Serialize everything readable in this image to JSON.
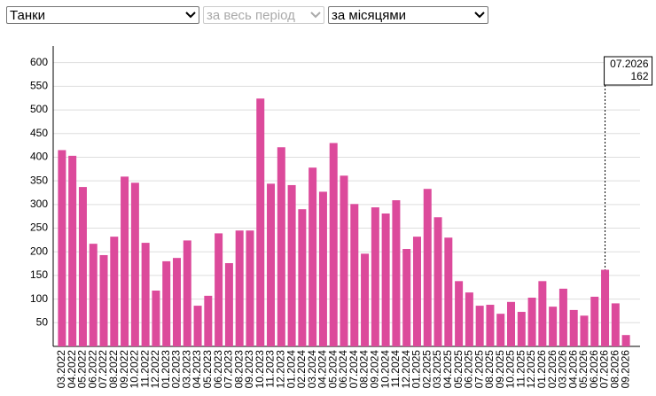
{
  "controls": {
    "weapon": "Танки",
    "period": "за весь період",
    "grouping": "за місяцями"
  },
  "chart_data": {
    "type": "bar",
    "categories": [
      "03.2022",
      "04.2022",
      "05.2022",
      "06.2022",
      "07.2022",
      "08.2022",
      "09.2022",
      "10.2022",
      "11.2022",
      "12.2022",
      "01.2023",
      "02.2023",
      "03.2023",
      "04.2023",
      "05.2023",
      "06.2023",
      "07.2023",
      "08.2023",
      "09.2023",
      "10.2023",
      "11.2023",
      "12.2023",
      "01.2024",
      "02.2024",
      "03.2024",
      "04.2024",
      "05.2024",
      "06.2024",
      "07.2024",
      "08.2024",
      "09.2024",
      "10.2024",
      "11.2024",
      "12.2024",
      "01.2025",
      "02.2025",
      "03.2025",
      "04.2025",
      "05.2025",
      "06.2025",
      "07.2025",
      "08.2025",
      "09.2025",
      "10.2025",
      "11.2025",
      "12.2025",
      "01.2026",
      "02.2026",
      "03.2026",
      "04.2026",
      "05.2026",
      "06.2026",
      "07.2026",
      "08.2026",
      "09.2026"
    ],
    "values": [
      415,
      403,
      337,
      217,
      193,
      232,
      359,
      346,
      219,
      118,
      180,
      187,
      224,
      86,
      107,
      239,
      176,
      245,
      245,
      524,
      344,
      421,
      341,
      290,
      378,
      327,
      430,
      361,
      301,
      196,
      294,
      281,
      309,
      206,
      232,
      333,
      273,
      230,
      138,
      114,
      86,
      88,
      69,
      94,
      73,
      103,
      138,
      84,
      122,
      77,
      65,
      105,
      162,
      91,
      24
    ],
    "color": "#dc4a9b",
    "ylim": [
      0,
      635
    ],
    "yticks": [
      50,
      100,
      150,
      200,
      250,
      300,
      350,
      400,
      450,
      500,
      550,
      600
    ],
    "grid": true,
    "tooltip_index": 52
  }
}
